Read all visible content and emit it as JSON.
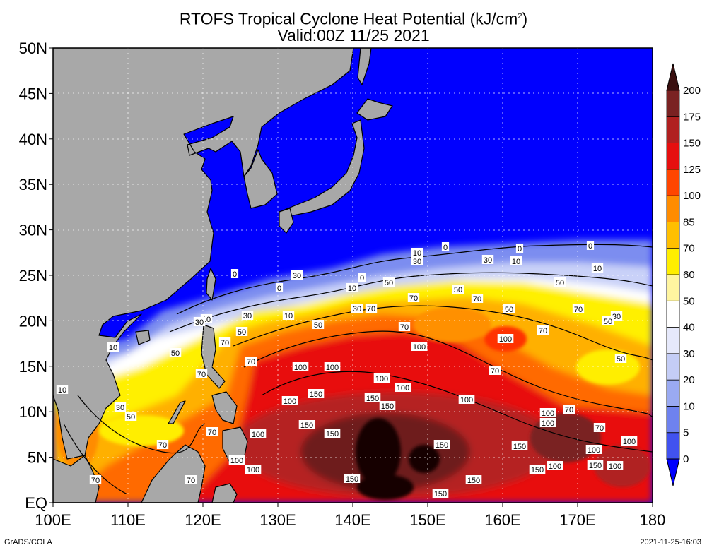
{
  "title": {
    "line1_prefix": "RTOFS Tropical Cyclone Heat Potential (kJ/cm",
    "line1_sup": "2",
    "line1_suffix": ")",
    "line2": "Valid:00Z 11/25 2021"
  },
  "footer": {
    "left": "GrADS/COLA",
    "right": "2021-11-25-16:03"
  },
  "map": {
    "lon_range": [
      100,
      180
    ],
    "lat_range": [
      0,
      50
    ],
    "grid_lines": "dotted",
    "land_color": "#a8a8a8",
    "ocean_cold_color": "#0000ff",
    "x_ticks": [
      "100E",
      "110E",
      "120E",
      "130E",
      "140E",
      "150E",
      "160E",
      "170E",
      "180"
    ],
    "y_ticks": [
      "EQ",
      "5N",
      "10N",
      "15N",
      "20N",
      "25N",
      "30N",
      "35N",
      "40N",
      "45N",
      "50N"
    ]
  },
  "colorbar": {
    "levels": [
      "0",
      "5",
      "10",
      "20",
      "30",
      "40",
      "50",
      "60",
      "70",
      "85",
      "100",
      "125",
      "150",
      "175",
      "200"
    ],
    "colors": [
      "#0000ff",
      "#4152f0",
      "#6e82ef",
      "#9aaaf2",
      "#c4cdf6",
      "#e6e9fb",
      "#ffffff",
      "#fff5a0",
      "#ffee00",
      "#ffbf00",
      "#ff8c00",
      "#ff4500",
      "#e60f0f",
      "#b02020",
      "#7a2222",
      "#3a1010"
    ]
  },
  "contour_labels": [
    "0",
    "0",
    "0",
    "0",
    "0",
    "0",
    "10",
    "10",
    "10",
    "10",
    "10",
    "10",
    "10",
    "10",
    "30",
    "30",
    "30",
    "30",
    "30",
    "30",
    "30",
    "30",
    "50",
    "50",
    "50",
    "50",
    "50",
    "50",
    "50",
    "50",
    "50",
    "50",
    "70",
    "70",
    "70",
    "70",
    "70",
    "70",
    "70",
    "70",
    "70",
    "70",
    "70",
    "70",
    "70",
    "70",
    "70",
    "70",
    "100",
    "100",
    "100",
    "100",
    "100",
    "100",
    "100",
    "100",
    "100",
    "100",
    "100",
    "100",
    "100",
    "100",
    "100",
    "100",
    "100",
    "150",
    "150",
    "150",
    "150",
    "150",
    "150",
    "150",
    "150",
    "150",
    "150",
    "150",
    "150"
  ]
}
